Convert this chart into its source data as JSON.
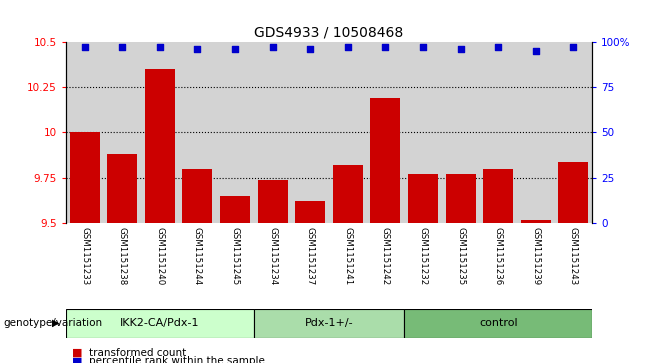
{
  "title": "GDS4933 / 10508468",
  "samples": [
    "GSM1151233",
    "GSM1151238",
    "GSM1151240",
    "GSM1151244",
    "GSM1151245",
    "GSM1151234",
    "GSM1151237",
    "GSM1151241",
    "GSM1151242",
    "GSM1151232",
    "GSM1151235",
    "GSM1151236",
    "GSM1151239",
    "GSM1151243"
  ],
  "bar_values": [
    10.0,
    9.88,
    10.35,
    9.8,
    9.65,
    9.74,
    9.62,
    9.82,
    10.19,
    9.77,
    9.77,
    9.8,
    9.52,
    9.84
  ],
  "percentile_values": [
    97,
    97,
    97,
    96,
    96,
    97,
    96,
    97,
    97,
    97,
    96,
    97,
    95,
    97
  ],
  "ylim_left": [
    9.5,
    10.5
  ],
  "ylim_right": [
    0,
    100
  ],
  "yticks_left": [
    9.5,
    9.75,
    10.0,
    10.25,
    10.5
  ],
  "ytick_labels_left": [
    "9.5",
    "9.75",
    "10",
    "10.25",
    "10.5"
  ],
  "yticks_right": [
    0,
    25,
    50,
    75,
    100
  ],
  "ytick_labels_right": [
    "0",
    "25",
    "50",
    "75",
    "100%"
  ],
  "bar_color": "#cc0000",
  "dot_color": "#0000cc",
  "groups": [
    {
      "label": "IKK2-CA/Pdx-1",
      "start": 0,
      "end": 5,
      "color": "#ccffcc"
    },
    {
      "label": "Pdx-1+/-",
      "start": 5,
      "end": 9,
      "color": "#aaddaa"
    },
    {
      "label": "control",
      "start": 9,
      "end": 14,
      "color": "#77bb77"
    }
  ],
  "xlabel_label": "genotype/variation",
  "legend_items": [
    {
      "label": "transformed count",
      "color": "#cc0000"
    },
    {
      "label": "percentile rank within the sample",
      "color": "#0000cc"
    }
  ],
  "bg_color": "#ffffff",
  "bar_bg_color": "#d3d3d3",
  "fig_width": 6.58,
  "fig_height": 3.63
}
